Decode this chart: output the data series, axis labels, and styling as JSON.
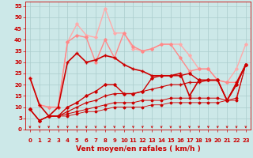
{
  "bg_color": "#cce8e8",
  "grid_color": "#aacccc",
  "xlim": [
    -0.5,
    23.5
  ],
  "ylim": [
    0,
    57
  ],
  "yticks": [
    0,
    5,
    10,
    15,
    20,
    25,
    30,
    35,
    40,
    45,
    50,
    55
  ],
  "xticks": [
    0,
    1,
    2,
    3,
    4,
    5,
    6,
    7,
    8,
    9,
    10,
    11,
    12,
    13,
    14,
    15,
    16,
    17,
    18,
    19,
    20,
    21,
    22,
    23
  ],
  "xlabel": "Vent moyen/en rafales ( km/h )",
  "xlabel_color": "#cc0000",
  "xlabel_fontsize": 6.5,
  "tick_fontsize": 5.0,
  "tick_color": "#cc0000",
  "arrow_color": "#cc0000",
  "lines": [
    {
      "x": [
        0,
        1,
        2,
        3,
        4,
        5,
        6,
        7,
        8,
        9,
        10,
        11,
        12,
        13,
        14,
        15,
        16,
        17,
        18,
        19,
        20,
        21,
        22,
        23
      ],
      "y": [
        23,
        11,
        10,
        10,
        39,
        47,
        42,
        41,
        54,
        43,
        43,
        36,
        35,
        36,
        38,
        38,
        38,
        33,
        27,
        27,
        22,
        21,
        27,
        38
      ],
      "color": "#ffaaaa",
      "lw": 1.0,
      "marker": "D",
      "ms": 1.8
    },
    {
      "x": [
        0,
        1,
        2,
        3,
        4,
        5,
        6,
        7,
        8,
        9,
        10,
        11,
        12,
        13,
        14,
        15,
        16,
        17,
        18,
        19,
        20,
        21,
        22,
        23
      ],
      "y": [
        23,
        11,
        10,
        10,
        39,
        42,
        41,
        30,
        40,
        32,
        43,
        37,
        35,
        36,
        38,
        38,
        32,
        26,
        27,
        27,
        22,
        21,
        21,
        29
      ],
      "color": "#ff8888",
      "lw": 1.0,
      "marker": "D",
      "ms": 1.8
    },
    {
      "x": [
        0,
        1,
        2,
        3,
        4,
        5,
        6,
        7,
        8,
        9,
        10,
        11,
        12,
        13,
        14,
        15,
        16,
        17,
        18,
        19,
        20,
        21,
        22,
        23
      ],
      "y": [
        23,
        11,
        6,
        10,
        30,
        34,
        30,
        31,
        33,
        32,
        29,
        27,
        26,
        24,
        24,
        24,
        25,
        15,
        22,
        22,
        22,
        13,
        20,
        29
      ],
      "color": "#cc0000",
      "lw": 1.2,
      "marker": "+",
      "ms": 3.0
    },
    {
      "x": [
        0,
        1,
        2,
        3,
        4,
        5,
        6,
        7,
        8,
        9,
        10,
        11,
        12,
        13,
        14,
        15,
        16,
        17,
        18,
        19,
        20,
        21,
        22,
        23
      ],
      "y": [
        9,
        4,
        6,
        6,
        10,
        12,
        15,
        17,
        20,
        20,
        16,
        16,
        17,
        23,
        24,
        24,
        24,
        25,
        22,
        22,
        22,
        13,
        20,
        29
      ],
      "color": "#cc0000",
      "lw": 1.0,
      "marker": "D",
      "ms": 1.8
    },
    {
      "x": [
        0,
        1,
        2,
        3,
        4,
        5,
        6,
        7,
        8,
        9,
        10,
        11,
        12,
        13,
        14,
        15,
        16,
        17,
        18,
        19,
        20,
        21,
        22,
        23
      ],
      "y": [
        9,
        4,
        6,
        6,
        8,
        10,
        12,
        13,
        15,
        16,
        16,
        16,
        17,
        18,
        19,
        20,
        20,
        21,
        21,
        22,
        22,
        13,
        21,
        29
      ],
      "color": "#cc0000",
      "lw": 0.8,
      "marker": "+",
      "ms": 2.5
    },
    {
      "x": [
        0,
        1,
        2,
        3,
        4,
        5,
        6,
        7,
        8,
        9,
        10,
        11,
        12,
        13,
        14,
        15,
        16,
        17,
        18,
        19,
        20,
        21,
        22,
        23
      ],
      "y": [
        9,
        4,
        6,
        6,
        7,
        8,
        9,
        10,
        11,
        12,
        12,
        12,
        13,
        13,
        13,
        14,
        14,
        14,
        14,
        14,
        14,
        13,
        14,
        29
      ],
      "color": "#cc0000",
      "lw": 0.7,
      "marker": "D",
      "ms": 1.5
    },
    {
      "x": [
        0,
        1,
        2,
        3,
        4,
        5,
        6,
        7,
        8,
        9,
        10,
        11,
        12,
        13,
        14,
        15,
        16,
        17,
        18,
        19,
        20,
        21,
        22,
        23
      ],
      "y": [
        9,
        4,
        6,
        6,
        6,
        7,
        8,
        8,
        9,
        10,
        10,
        10,
        10,
        11,
        11,
        12,
        12,
        12,
        12,
        12,
        12,
        13,
        13,
        29
      ],
      "color": "#cc0000",
      "lw": 0.6,
      "marker": "D",
      "ms": 1.5
    }
  ]
}
